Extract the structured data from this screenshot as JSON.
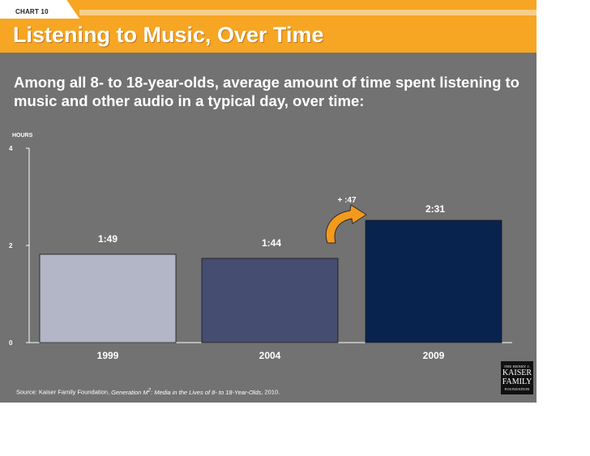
{
  "header": {
    "chart_label": "CHART 10",
    "title": "Listening to Music, Over Time"
  },
  "subtitle": "Among all 8- to 18-year-olds, average amount of time spent listening to music and other audio in a typical day, over time:",
  "colors": {
    "header": "#f6a623",
    "background": "#727272",
    "bar_1999": "#b3b6c6",
    "bar_2004": "#454d70",
    "bar_2009": "#08234e",
    "arrow": "#f39a1c"
  },
  "chart_data": {
    "type": "bar",
    "units_label": "HOURS",
    "categories": [
      "1999",
      "2004",
      "2009"
    ],
    "values": [
      1.8167,
      1.7333,
      2.5167
    ],
    "data_labels": [
      "1:49",
      "1:44",
      "2:31"
    ],
    "ylim": [
      0,
      4
    ],
    "yticks": [
      0,
      2,
      4
    ],
    "annotation": {
      "text": "+ :47",
      "from": "2004",
      "to": "2009",
      "icon": "curved-arrow-icon"
    },
    "grid": false,
    "legend": "none"
  },
  "source": {
    "prefix": "Source: Kaiser Family Foundation, ",
    "title": "Generation M",
    "sup": "2",
    "title_rest": ": Media in the Lives of 8- to 18-Year-Olds",
    "suffix": ", 2010."
  },
  "logo": {
    "line1": "THE HENRY J.",
    "line2a": "KAISER",
    "line2b": "FAMILY",
    "line3": "FOUNDATION"
  }
}
